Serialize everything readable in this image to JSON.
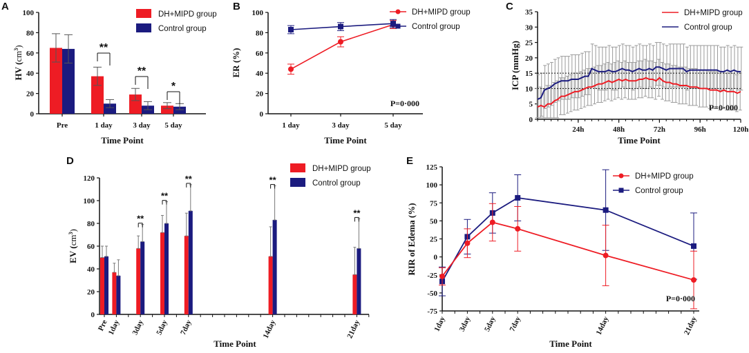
{
  "colors": {
    "red": "#ee1c24",
    "blue": "#1b1b7f",
    "grey": "#9a9a9a",
    "axis": "#111111"
  },
  "chart_data": [
    {
      "panel": "A",
      "type": "bar",
      "categories": [
        "Pre",
        "1 day",
        "3 day",
        "5 day"
      ],
      "series": [
        {
          "name": "DH+MIPD group",
          "values": [
            65,
            37,
            19,
            8
          ],
          "errors": [
            14,
            9,
            6,
            3
          ]
        },
        {
          "name": "Control group",
          "values": [
            64,
            10,
            8,
            7
          ],
          "errors": [
            14,
            4,
            4,
            3
          ]
        }
      ],
      "xlabel": "Time Point",
      "ylabel": "HV",
      "ylabel_unit": "cm",
      "yticks": [
        "0",
        "20",
        "40",
        "60",
        "80",
        "100"
      ],
      "ylim": [
        0,
        100
      ],
      "annotations": [
        "**",
        "**",
        "*"
      ]
    },
    {
      "panel": "B",
      "type": "line",
      "categories": [
        "1 day",
        "3 day",
        "5 day"
      ],
      "series": [
        {
          "name": "DH+MIPD group",
          "values": [
            44,
            71,
            88
          ],
          "errors": [
            5,
            5,
            4
          ]
        },
        {
          "name": "Control group",
          "values": [
            83,
            86,
            89
          ],
          "errors": [
            4,
            4,
            4
          ]
        }
      ],
      "xlabel": "Time Point",
      "ylabel": "ER  (%)",
      "yticks": [
        "0",
        "20",
        "40",
        "60",
        "80",
        "100"
      ],
      "ylim": [
        0,
        100
      ],
      "pvalue": "P=0·000"
    },
    {
      "panel": "C",
      "type": "line",
      "x_hours": [
        0,
        2,
        4,
        6,
        8,
        10,
        12,
        14,
        16,
        18,
        20,
        22,
        24,
        26,
        28,
        30,
        32,
        34,
        36,
        38,
        40,
        42,
        44,
        46,
        48,
        50,
        52,
        54,
        56,
        58,
        60,
        62,
        64,
        66,
        68,
        70,
        72,
        74,
        76,
        78,
        80,
        82,
        84,
        86,
        88,
        90,
        92,
        94,
        96,
        98,
        100,
        102,
        104,
        106,
        108,
        110,
        112,
        114,
        116,
        118,
        120
      ],
      "series": [
        {
          "name": "DH+MIPD group",
          "values": [
            4,
            4.5,
            4,
            5,
            5,
            6,
            6.5,
            7.5,
            7.5,
            8,
            8.5,
            9,
            9,
            9.5,
            10,
            10.5,
            10.5,
            11,
            11.5,
            11.5,
            12,
            12.5,
            12,
            12.5,
            13,
            12.5,
            13,
            12.5,
            12.5,
            12.5,
            13,
            13,
            13.5,
            13,
            13,
            12.5,
            13.5,
            12.5,
            12,
            12,
            11.5,
            11.5,
            11,
            11,
            11,
            10.5,
            10.5,
            10.5,
            10,
            10,
            10,
            9.5,
            9.5,
            9.5,
            9,
            9.5,
            9,
            9,
            9,
            8.5,
            9
          ]
        },
        {
          "name": "Control group",
          "values": [
            6.5,
            7,
            9.5,
            10,
            10.5,
            11.5,
            12,
            12.5,
            12.5,
            12.5,
            13,
            13,
            13,
            13.5,
            14,
            14,
            16.5,
            16,
            15.5,
            15.5,
            15.5,
            16,
            15.5,
            15.5,
            16,
            16.5,
            16,
            16,
            15.5,
            16,
            16.5,
            16,
            16,
            16.5,
            16,
            17,
            17,
            16.5,
            16,
            16.5,
            16.5,
            16.5,
            16.5,
            16.5,
            15.5,
            16,
            16,
            16,
            16,
            16,
            16,
            16,
            16,
            16,
            15.5,
            15.5,
            16,
            15.5,
            16,
            15.5,
            15.5
          ]
        }
      ],
      "error_band": 6,
      "reference_lines": [
        10,
        15
      ],
      "xticks": [
        "24h",
        "48h",
        "72h",
        "96h",
        "120h"
      ],
      "xlabel": "Time Point",
      "ylabel": "ICP  (mmHg)",
      "yticks": [
        "0",
        "5",
        "10",
        "15",
        "20",
        "25",
        "30",
        "35"
      ],
      "ylim": [
        0,
        35
      ],
      "pvalue": "P=0·000"
    },
    {
      "panel": "D",
      "type": "bar",
      "categories": [
        "Pre",
        "1day",
        "3day",
        "5day",
        "7day",
        "14day",
        "21day"
      ],
      "category_positions": [
        0,
        1,
        3,
        5,
        7,
        14,
        21
      ],
      "series": [
        {
          "name": "DH+MIPD group",
          "values": [
            50,
            37,
            58,
            72,
            69,
            51,
            35
          ],
          "errors": [
            10,
            8,
            11,
            15,
            20,
            26,
            24
          ]
        },
        {
          "name": "Control group",
          "values": [
            51,
            34,
            64,
            80,
            91,
            83,
            58
          ],
          "errors": [
            9,
            14,
            15,
            19,
            23,
            30,
            26
          ]
        }
      ],
      "xlabel": "Time Point",
      "ylabel": "EV",
      "ylabel_unit": "cm",
      "yticks": [
        "0",
        "20",
        "40",
        "60",
        "80",
        "100",
        "120"
      ],
      "ylim": [
        0,
        120
      ],
      "annotations": [
        "**",
        "**",
        "**",
        "**",
        "**"
      ]
    },
    {
      "panel": "E",
      "type": "line",
      "categories": [
        "1day",
        "3day",
        "5day",
        "7day",
        "14day",
        "21day"
      ],
      "category_positions": [
        1,
        3,
        5,
        7,
        14,
        21
      ],
      "series": [
        {
          "name": "DH+MIPD group",
          "values": [
            -27,
            19,
            48,
            39,
            2,
            -32
          ],
          "errors": [
            12,
            20,
            26,
            31,
            42,
            40
          ]
        },
        {
          "name": "Control group",
          "values": [
            -34,
            28,
            61,
            82,
            65,
            15
          ],
          "errors": [
            20,
            24,
            28,
            32,
            56,
            46
          ]
        }
      ],
      "xlabel": "Time Point",
      "ylabel": "RIR of Edema (%)",
      "yticks": [
        "-75",
        "-50",
        "-25",
        "0",
        "25",
        "50",
        "75",
        "100",
        "125"
      ],
      "ylim": [
        -75,
        125
      ],
      "pvalue": "P=0·000"
    }
  ]
}
